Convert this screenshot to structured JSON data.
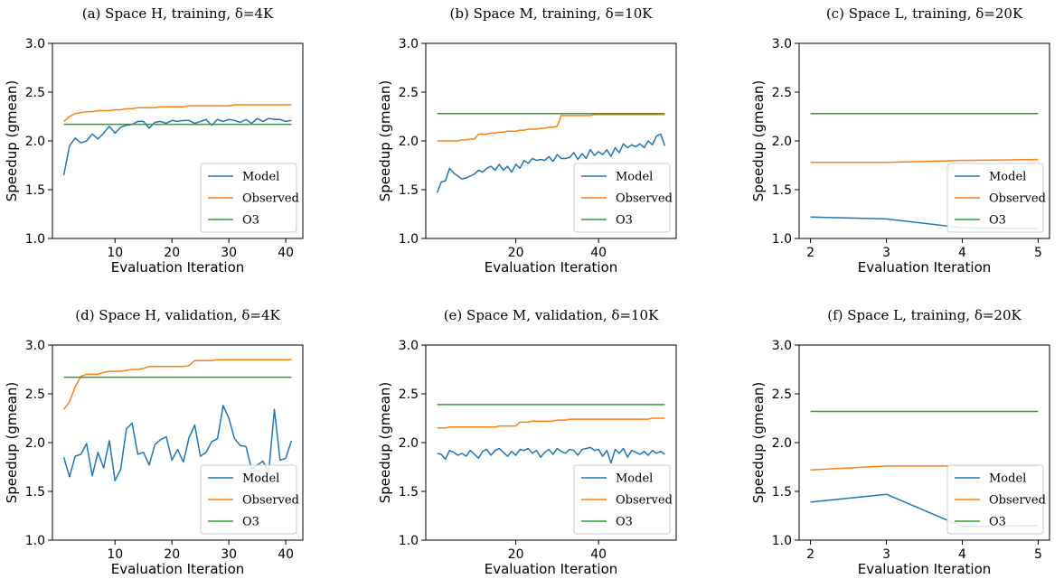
{
  "colors": {
    "Model": "#1f77b4",
    "Observed": "#ff7f0e",
    "O3": "#2ca02c"
  },
  "chart_data": [
    {
      "type": "line",
      "title": "(a) Space H, training, δ=4K",
      "xlabel": "Evaluation Iteration",
      "ylabel": "Speedup (gmean)",
      "xlim": [
        -1,
        43
      ],
      "ylim": [
        1.0,
        3.0
      ],
      "xticks": [
        10,
        20,
        30,
        40
      ],
      "yticks": [
        1.0,
        1.5,
        2.0,
        2.5,
        3.0
      ],
      "legend": "lower-right",
      "x": [
        1,
        2,
        3,
        4,
        5,
        6,
        7,
        8,
        9,
        10,
        11,
        12,
        13,
        14,
        15,
        16,
        17,
        18,
        19,
        20,
        21,
        22,
        23,
        24,
        25,
        26,
        27,
        28,
        29,
        30,
        31,
        32,
        33,
        34,
        35,
        36,
        37,
        38,
        39,
        40,
        41
      ],
      "series": [
        {
          "name": "Model",
          "values": [
            1.65,
            1.95,
            2.03,
            1.98,
            2.0,
            2.07,
            2.02,
            2.08,
            2.15,
            2.08,
            2.14,
            2.16,
            2.17,
            2.2,
            2.2,
            2.13,
            2.19,
            2.2,
            2.18,
            2.21,
            2.2,
            2.21,
            2.21,
            2.18,
            2.2,
            2.22,
            2.16,
            2.22,
            2.2,
            2.22,
            2.21,
            2.19,
            2.22,
            2.18,
            2.23,
            2.2,
            2.23,
            2.22,
            2.22,
            2.2,
            2.21
          ]
        },
        {
          "name": "Observed",
          "values": [
            2.2,
            2.25,
            2.28,
            2.29,
            2.3,
            2.3,
            2.31,
            2.31,
            2.31,
            2.32,
            2.32,
            2.33,
            2.33,
            2.34,
            2.34,
            2.34,
            2.34,
            2.35,
            2.35,
            2.35,
            2.35,
            2.35,
            2.36,
            2.36,
            2.36,
            2.36,
            2.36,
            2.36,
            2.36,
            2.36,
            2.37,
            2.37,
            2.37,
            2.37,
            2.37,
            2.37,
            2.37,
            2.37,
            2.37,
            2.37,
            2.37
          ]
        },
        {
          "name": "O3",
          "values": [
            2.17,
            2.17,
            2.17,
            2.17,
            2.17,
            2.17,
            2.17,
            2.17,
            2.17,
            2.17,
            2.17,
            2.17,
            2.17,
            2.17,
            2.17,
            2.17,
            2.17,
            2.17,
            2.17,
            2.17,
            2.17,
            2.17,
            2.17,
            2.17,
            2.17,
            2.17,
            2.17,
            2.17,
            2.17,
            2.17,
            2.17,
            2.17,
            2.17,
            2.17,
            2.17,
            2.17,
            2.17,
            2.17,
            2.17,
            2.17,
            2.17
          ]
        }
      ]
    },
    {
      "type": "line",
      "title": "(b) Space M, training, δ=10K",
      "xlabel": "Evaluation Iteration",
      "ylabel": "Speedup (gmean)",
      "xlim": [
        -1.75,
        58.75
      ],
      "ylim": [
        1.0,
        3.0
      ],
      "xticks": [
        20,
        40
      ],
      "yticks": [
        1.0,
        1.5,
        2.0,
        2.5,
        3.0
      ],
      "legend": "lower-right",
      "x": [
        1,
        2,
        3,
        4,
        5,
        6,
        7,
        8,
        9,
        10,
        11,
        12,
        13,
        14,
        15,
        16,
        17,
        18,
        19,
        20,
        21,
        22,
        23,
        24,
        25,
        26,
        27,
        28,
        29,
        30,
        31,
        32,
        33,
        34,
        35,
        36,
        37,
        38,
        39,
        40,
        41,
        42,
        43,
        44,
        45,
        46,
        47,
        48,
        49,
        50,
        51,
        52,
        53,
        54,
        55,
        56
      ],
      "series": [
        {
          "name": "Model",
          "values": [
            1.47,
            1.58,
            1.59,
            1.72,
            1.67,
            1.64,
            1.61,
            1.62,
            1.64,
            1.66,
            1.7,
            1.68,
            1.72,
            1.74,
            1.7,
            1.76,
            1.7,
            1.74,
            1.68,
            1.76,
            1.72,
            1.8,
            1.77,
            1.82,
            1.8,
            1.81,
            1.8,
            1.84,
            1.79,
            1.86,
            1.82,
            1.82,
            1.83,
            1.88,
            1.81,
            1.87,
            1.82,
            1.91,
            1.85,
            1.89,
            1.86,
            1.91,
            1.84,
            1.93,
            1.88,
            1.97,
            1.93,
            1.96,
            1.94,
            1.97,
            1.93,
            2.0,
            1.96,
            2.05,
            2.07,
            1.95
          ]
        },
        {
          "name": "Observed",
          "values": [
            2.0,
            2.0,
            2.0,
            2.0,
            2.0,
            2.0,
            2.01,
            2.01,
            2.02,
            2.02,
            2.07,
            2.07,
            2.07,
            2.08,
            2.08,
            2.09,
            2.09,
            2.1,
            2.1,
            2.1,
            2.11,
            2.11,
            2.12,
            2.12,
            2.12,
            2.13,
            2.13,
            2.14,
            2.14,
            2.15,
            2.26,
            2.26,
            2.26,
            2.26,
            2.26,
            2.26,
            2.26,
            2.26,
            2.27,
            2.27,
            2.27,
            2.27,
            2.27,
            2.27,
            2.27,
            2.27,
            2.27,
            2.27,
            2.27,
            2.27,
            2.27,
            2.27,
            2.27,
            2.27,
            2.27,
            2.27
          ]
        },
        {
          "name": "O3",
          "values": [
            2.28,
            2.28,
            2.28,
            2.28,
            2.28,
            2.28,
            2.28,
            2.28,
            2.28,
            2.28,
            2.28,
            2.28,
            2.28,
            2.28,
            2.28,
            2.28,
            2.28,
            2.28,
            2.28,
            2.28,
            2.28,
            2.28,
            2.28,
            2.28,
            2.28,
            2.28,
            2.28,
            2.28,
            2.28,
            2.28,
            2.28,
            2.28,
            2.28,
            2.28,
            2.28,
            2.28,
            2.28,
            2.28,
            2.28,
            2.28,
            2.28,
            2.28,
            2.28,
            2.28,
            2.28,
            2.28,
            2.28,
            2.28,
            2.28,
            2.28,
            2.28,
            2.28,
            2.28,
            2.28,
            2.28,
            2.28
          ]
        }
      ]
    },
    {
      "type": "line",
      "title": "(c) Space L, training, δ=20K",
      "xlabel": "Evaluation Iteration",
      "ylabel": "Speedup (gmean)",
      "xlim": [
        1.85,
        5.15
      ],
      "ylim": [
        1.0,
        3.0
      ],
      "xticks": [
        2,
        3,
        4,
        5
      ],
      "yticks": [
        1.0,
        1.5,
        2.0,
        2.5,
        3.0
      ],
      "legend": "lower-right",
      "x": [
        2,
        3,
        4,
        5
      ],
      "series": [
        {
          "name": "Model",
          "values": [
            1.22,
            1.2,
            1.11,
            1.1
          ]
        },
        {
          "name": "Observed",
          "values": [
            1.78,
            1.78,
            1.8,
            1.81
          ]
        },
        {
          "name": "O3",
          "values": [
            2.28,
            2.28,
            2.28,
            2.28
          ]
        }
      ]
    },
    {
      "type": "line",
      "title": "(d) Space H, validation, δ=4K",
      "xlabel": "Evaluation Iteration",
      "ylabel": "Speedup (gmean)",
      "xlim": [
        -1,
        43
      ],
      "ylim": [
        1.0,
        3.0
      ],
      "xticks": [
        10,
        20,
        30,
        40
      ],
      "yticks": [
        1.0,
        1.5,
        2.0,
        2.5,
        3.0
      ],
      "legend": "lower-right",
      "x": [
        1,
        2,
        3,
        4,
        5,
        6,
        7,
        8,
        9,
        10,
        11,
        12,
        13,
        14,
        15,
        16,
        17,
        18,
        19,
        20,
        21,
        22,
        23,
        24,
        25,
        26,
        27,
        28,
        29,
        30,
        31,
        32,
        33,
        34,
        35,
        36,
        37,
        38,
        39,
        40,
        41
      ],
      "series": [
        {
          "name": "Model",
          "values": [
            1.85,
            1.65,
            1.86,
            1.88,
            1.99,
            1.66,
            1.9,
            1.74,
            2.02,
            1.61,
            1.73,
            2.14,
            2.2,
            1.88,
            1.9,
            1.77,
            1.98,
            2.03,
            2.06,
            1.82,
            1.93,
            1.8,
            2.05,
            2.18,
            1.86,
            1.9,
            2.01,
            2.04,
            2.38,
            2.25,
            2.04,
            1.97,
            1.96,
            1.73,
            1.77,
            1.81,
            1.69,
            2.34,
            1.82,
            1.84,
            2.02
          ]
        },
        {
          "name": "Observed",
          "values": [
            2.34,
            2.42,
            2.57,
            2.68,
            2.7,
            2.7,
            2.7,
            2.72,
            2.73,
            2.73,
            2.73,
            2.74,
            2.75,
            2.75,
            2.76,
            2.78,
            2.78,
            2.78,
            2.78,
            2.78,
            2.78,
            2.78,
            2.79,
            2.84,
            2.84,
            2.84,
            2.84,
            2.85,
            2.85,
            2.85,
            2.85,
            2.85,
            2.85,
            2.85,
            2.85,
            2.85,
            2.85,
            2.85,
            2.85,
            2.85,
            2.85
          ]
        },
        {
          "name": "O3",
          "values": [
            2.67,
            2.67,
            2.67,
            2.67,
            2.67,
            2.67,
            2.67,
            2.67,
            2.67,
            2.67,
            2.67,
            2.67,
            2.67,
            2.67,
            2.67,
            2.67,
            2.67,
            2.67,
            2.67,
            2.67,
            2.67,
            2.67,
            2.67,
            2.67,
            2.67,
            2.67,
            2.67,
            2.67,
            2.67,
            2.67,
            2.67,
            2.67,
            2.67,
            2.67,
            2.67,
            2.67,
            2.67,
            2.67,
            2.67,
            2.67,
            2.67
          ]
        }
      ]
    },
    {
      "type": "line",
      "title": "(e) Space M, validation, δ=10K",
      "xlabel": "Evaluation Iteration",
      "ylabel": "Speedup (gmean)",
      "xlim": [
        -1.75,
        58.75
      ],
      "ylim": [
        1.0,
        3.0
      ],
      "xticks": [
        20,
        40
      ],
      "yticks": [
        1.0,
        1.5,
        2.0,
        2.5,
        3.0
      ],
      "legend": "lower-right",
      "x": [
        1,
        2,
        3,
        4,
        5,
        6,
        7,
        8,
        9,
        10,
        11,
        12,
        13,
        14,
        15,
        16,
        17,
        18,
        19,
        20,
        21,
        22,
        23,
        24,
        25,
        26,
        27,
        28,
        29,
        30,
        31,
        32,
        33,
        34,
        35,
        36,
        37,
        38,
        39,
        40,
        41,
        42,
        43,
        44,
        45,
        46,
        47,
        48,
        49,
        50,
        51,
        52,
        53,
        54,
        55,
        56
      ],
      "series": [
        {
          "name": "Model",
          "values": [
            1.89,
            1.88,
            1.83,
            1.92,
            1.9,
            1.87,
            1.89,
            1.86,
            1.92,
            1.88,
            1.84,
            1.91,
            1.93,
            1.87,
            1.92,
            1.94,
            1.9,
            1.86,
            1.91,
            1.87,
            1.93,
            1.92,
            1.94,
            1.89,
            1.92,
            1.85,
            1.9,
            1.93,
            1.88,
            1.94,
            1.91,
            1.89,
            1.93,
            1.92,
            1.87,
            1.93,
            1.94,
            1.95,
            1.92,
            1.93,
            1.86,
            1.92,
            1.79,
            1.93,
            1.89,
            1.94,
            1.85,
            1.92,
            1.9,
            1.88,
            1.91,
            1.87,
            1.92,
            1.89,
            1.91,
            1.88
          ]
        },
        {
          "name": "Observed",
          "values": [
            2.15,
            2.15,
            2.15,
            2.16,
            2.16,
            2.16,
            2.16,
            2.16,
            2.16,
            2.16,
            2.16,
            2.16,
            2.16,
            2.16,
            2.16,
            2.17,
            2.17,
            2.17,
            2.17,
            2.17,
            2.21,
            2.21,
            2.21,
            2.22,
            2.22,
            2.22,
            2.22,
            2.22,
            2.22,
            2.23,
            2.23,
            2.23,
            2.24,
            2.24,
            2.24,
            2.24,
            2.24,
            2.24,
            2.24,
            2.24,
            2.24,
            2.24,
            2.24,
            2.24,
            2.24,
            2.24,
            2.24,
            2.24,
            2.24,
            2.24,
            2.24,
            2.24,
            2.25,
            2.25,
            2.25,
            2.25
          ]
        },
        {
          "name": "O3",
          "values": [
            2.39,
            2.39,
            2.39,
            2.39,
            2.39,
            2.39,
            2.39,
            2.39,
            2.39,
            2.39,
            2.39,
            2.39,
            2.39,
            2.39,
            2.39,
            2.39,
            2.39,
            2.39,
            2.39,
            2.39,
            2.39,
            2.39,
            2.39,
            2.39,
            2.39,
            2.39,
            2.39,
            2.39,
            2.39,
            2.39,
            2.39,
            2.39,
            2.39,
            2.39,
            2.39,
            2.39,
            2.39,
            2.39,
            2.39,
            2.39,
            2.39,
            2.39,
            2.39,
            2.39,
            2.39,
            2.39,
            2.39,
            2.39,
            2.39,
            2.39,
            2.39,
            2.39,
            2.39,
            2.39,
            2.39,
            2.39
          ]
        }
      ]
    },
    {
      "type": "line",
      "title": "(f) Space L, training, δ=20K",
      "xlabel": "Evaluation Iteration",
      "ylabel": "Speedup (gmean)",
      "xlim": [
        1.85,
        5.15
      ],
      "ylim": [
        1.0,
        3.0
      ],
      "xticks": [
        2,
        3,
        4,
        5
      ],
      "yticks": [
        1.0,
        1.5,
        2.0,
        2.5,
        3.0
      ],
      "legend": "lower-right",
      "x": [
        2,
        3,
        4,
        5
      ],
      "series": [
        {
          "name": "Model",
          "values": [
            1.39,
            1.47,
            1.14,
            1.15
          ]
        },
        {
          "name": "Observed",
          "values": [
            1.72,
            1.76,
            1.76,
            1.76
          ]
        },
        {
          "name": "O3",
          "values": [
            2.32,
            2.32,
            2.32,
            2.32
          ]
        }
      ]
    }
  ]
}
